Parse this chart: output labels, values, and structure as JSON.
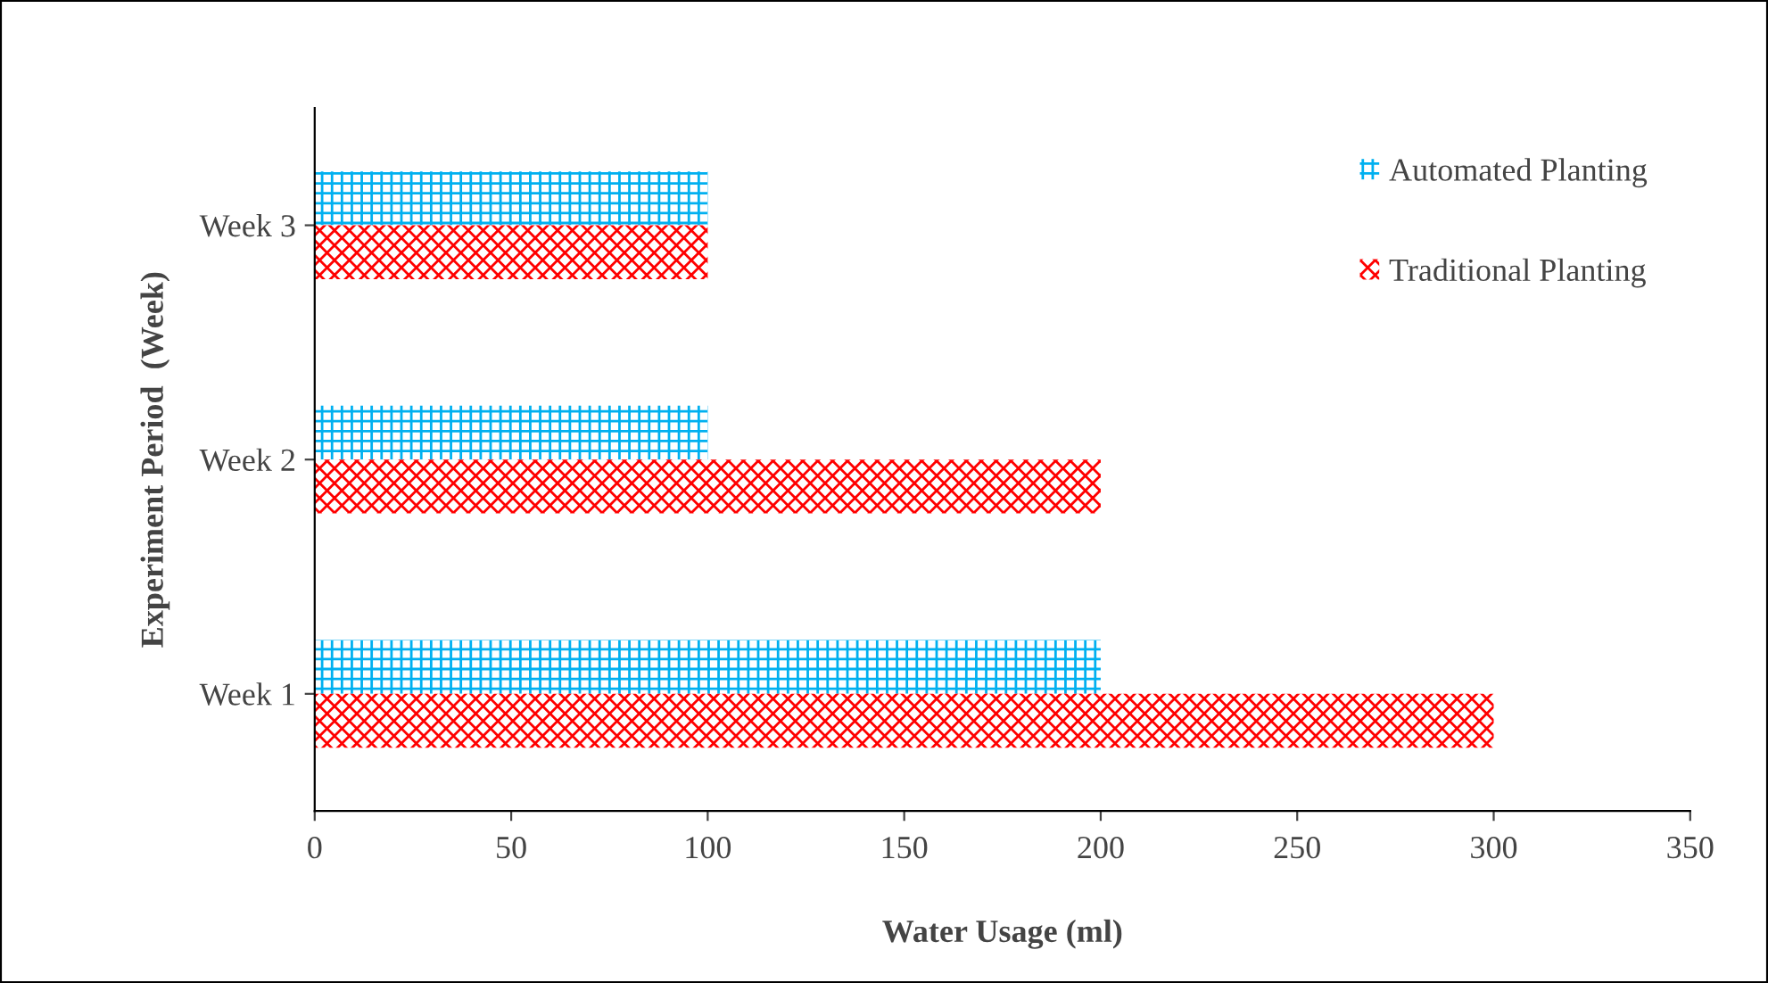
{
  "chart_data": {
    "type": "bar",
    "orientation": "horizontal",
    "xlabel": "Water Usage (ml)",
    "ylabel": "Experiment Period  (Week)",
    "categories": [
      "Week 3",
      "Week 2",
      "Week 1"
    ],
    "series": [
      {
        "name": "Automated Planting",
        "color": "#00b0f0",
        "values": [
          100,
          100,
          200
        ]
      },
      {
        "name": "Traditional Planting",
        "color": "#ff0000",
        "values": [
          100,
          200,
          300
        ]
      }
    ],
    "xlim": [
      0,
      350
    ],
    "xticks": [
      0,
      50,
      100,
      150,
      200,
      250,
      300,
      350
    ],
    "grid": false,
    "legend": "top right"
  }
}
